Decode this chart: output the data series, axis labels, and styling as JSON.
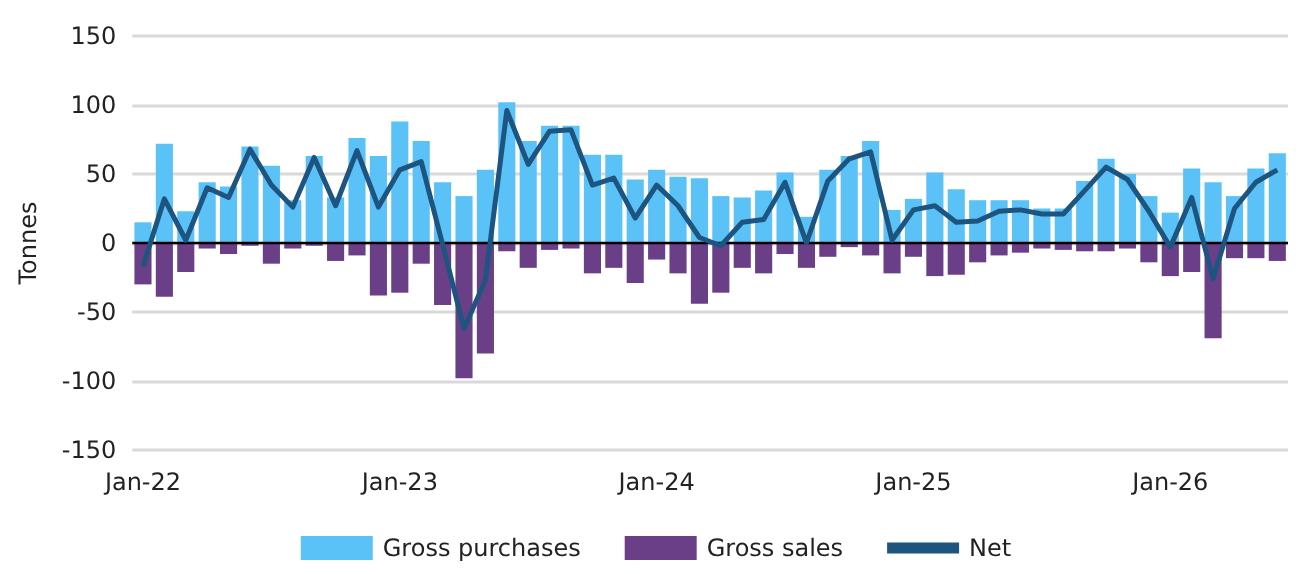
{
  "chart_data": {
    "type": "bar",
    "ylabel": "Tonnes",
    "categories": [
      "Jan-22",
      null,
      null,
      null,
      null,
      null,
      null,
      null,
      null,
      null,
      null,
      null,
      "Jan-23",
      null,
      null,
      null,
      null,
      null,
      null,
      null,
      null,
      null,
      null,
      null,
      "Jan-24",
      null,
      null,
      null,
      null,
      null,
      null,
      null,
      null,
      null,
      null,
      null,
      "Jan-25",
      null,
      null,
      null,
      null,
      null,
      null,
      null,
      null,
      null,
      null,
      null,
      "Jan-26",
      null,
      null,
      null,
      null,
      null
    ],
    "series": [
      {
        "name": "Gross purchases",
        "color": "#5bc2f7",
        "values": [
          15,
          72,
          23,
          44,
          41,
          70,
          56,
          31,
          63,
          33,
          76,
          63,
          88,
          74,
          44,
          34,
          53,
          102,
          74,
          85,
          85,
          64,
          64,
          46,
          53,
          48,
          47,
          34,
          33,
          38,
          51,
          19,
          53,
          63,
          74,
          24,
          32,
          51,
          39,
          31,
          31,
          31,
          25,
          25,
          45,
          61,
          50,
          34,
          22,
          54,
          44,
          34,
          54,
          65
        ]
      },
      {
        "name": "Gross sales",
        "color": "#6b3f87",
        "values": [
          -30,
          -39,
          -21,
          -4,
          -8,
          -2,
          -15,
          -4,
          -2,
          -13,
          -9,
          -38,
          -36,
          -15,
          -45,
          -98,
          -80,
          -6,
          -18,
          -5,
          -4,
          -22,
          -18,
          -29,
          -12,
          -22,
          -44,
          -36,
          -18,
          -22,
          -8,
          -18,
          -10,
          -3,
          -9,
          -22,
          -10,
          -24,
          -23,
          -14,
          -9,
          -7,
          -4,
          -5,
          -6,
          -6,
          -4,
          -14,
          -24,
          -21,
          -69,
          -11,
          -11,
          -13
        ]
      },
      {
        "name": "Net",
        "type": "line",
        "color": "#1d5580",
        "marker": "none",
        "values": [
          -17,
          32,
          2,
          40,
          33,
          68,
          42,
          26,
          62,
          27,
          67,
          26,
          53,
          59,
          -1,
          -62,
          -27,
          96,
          57,
          81,
          82,
          42,
          47,
          18,
          42,
          27,
          4,
          -2,
          15,
          17,
          44,
          0,
          45,
          61,
          66,
          2,
          24,
          27,
          15,
          16,
          23,
          24,
          21,
          21,
          38,
          55,
          46,
          23,
          -3,
          33,
          -26,
          25,
          44,
          53
        ]
      }
    ],
    "ylim": [
      -150,
      150
    ],
    "yticks": [
      -150,
      -100,
      -50,
      0,
      50,
      100,
      150
    ],
    "stacked": true,
    "grid": "y",
    "legend": "bottom"
  }
}
